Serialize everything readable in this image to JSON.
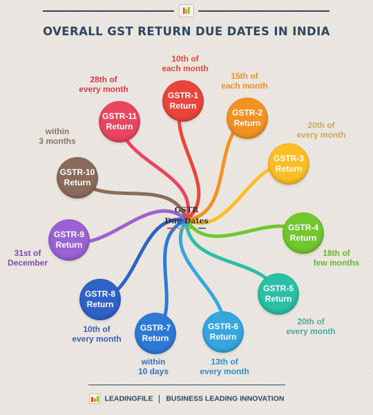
{
  "title": "OVERALL GST RETURN DUE DATES IN INDIA",
  "center": {
    "line1": "GSTR",
    "line2": "Due Dates"
  },
  "returns": [
    {
      "name": "GSTR-1",
      "sub": "Return",
      "due": "10th of\neach month",
      "color": "#e8463d",
      "dateColor": "#e8463d"
    },
    {
      "name": "GSTR-2",
      "sub": "Return",
      "due": "15th of\neach month",
      "color": "#f29224",
      "dateColor": "#ee8f22"
    },
    {
      "name": "GSTR-3",
      "sub": "Return",
      "due": "20th of\nevery month",
      "color": "#fbbf24",
      "dateColor": "#d2a55c"
    },
    {
      "name": "GSTR-4",
      "sub": "Return",
      "due": "18th of\nfew months",
      "color": "#72c72e",
      "dateColor": "#6bb435"
    },
    {
      "name": "GSTR-5",
      "sub": "Return",
      "due": "20th of\nevery month",
      "color": "#2bbfa6",
      "dateColor": "#4aa8a2"
    },
    {
      "name": "GSTR-6",
      "sub": "Return",
      "due": "13th of\nevery month",
      "color": "#36a6de",
      "dateColor": "#2c8fce"
    },
    {
      "name": "GSTR-7",
      "sub": "Return",
      "due": "within\n10 days",
      "color": "#2d7ad6",
      "dateColor": "#2f73c6"
    },
    {
      "name": "GSTR-8",
      "sub": "Return",
      "due": "10th of\nevery month",
      "color": "#2f62c6",
      "dateColor": "#3a5fb5"
    },
    {
      "name": "GSTR-9",
      "sub": "Return",
      "due": "31st of\nDecember",
      "color": "#9a63d1",
      "dateColor": "#7b4bb0"
    },
    {
      "name": "GSTR-10",
      "sub": "Return",
      "due": "within\n3 months",
      "color": "#8b6c5a",
      "dateColor": "#8a7466"
    },
    {
      "name": "GSTR-11",
      "sub": "Return",
      "due": "28th of\nevery month",
      "color": "#e84560",
      "dateColor": "#d63b45"
    }
  ],
  "footer": {
    "brand": "LEADINGFILE",
    "tagline": "BUSINESS LEADING INNOVATION"
  }
}
